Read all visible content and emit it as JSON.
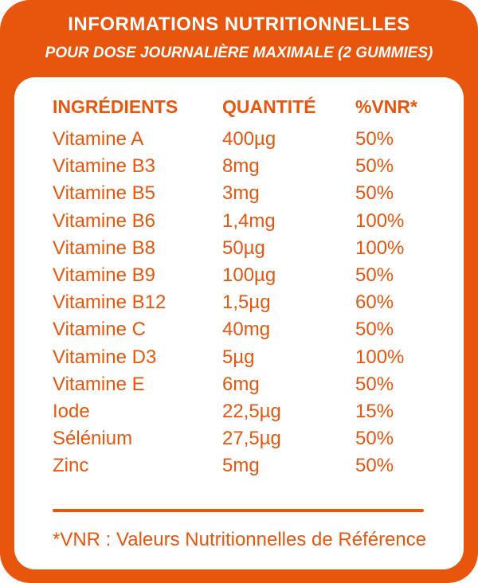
{
  "header": {
    "title": "INFORMATIONS NUTRITIONNELLES",
    "subtitle": "POUR DOSE JOURNALIÈRE MAXIMALE (2 GUMMIES)"
  },
  "table": {
    "columns": [
      "INGRÉDIENTS",
      "QUANTITÉ",
      "%VNR*"
    ],
    "rows": [
      [
        "Vitamine A",
        "400µg",
        "50%"
      ],
      [
        "Vitamine B3",
        "8mg",
        "50%"
      ],
      [
        "Vitamine B5",
        "3mg",
        "50%"
      ],
      [
        "Vitamine B6",
        "1,4mg",
        "100%"
      ],
      [
        "Vitamine B8",
        "50µg",
        "100%"
      ],
      [
        "Vitamine B9",
        "100µg",
        "50%"
      ],
      [
        "Vitamine B12",
        "1,5µg",
        "60%"
      ],
      [
        "Vitamine C",
        "40mg",
        "50%"
      ],
      [
        "Vitamine D3",
        "5µg",
        "100%"
      ],
      [
        "Vitamine E",
        "6mg",
        "50%"
      ],
      [
        "Iode",
        "22,5µg",
        "15%"
      ],
      [
        "Sélénium",
        "27,5µg",
        "50%"
      ],
      [
        "Zinc",
        "5mg",
        "50%"
      ]
    ]
  },
  "footnote": "*VNR : Valeurs Nutritionnelles de Référence",
  "colors": {
    "accent": "#e8560d",
    "background": "#ffffff"
  }
}
